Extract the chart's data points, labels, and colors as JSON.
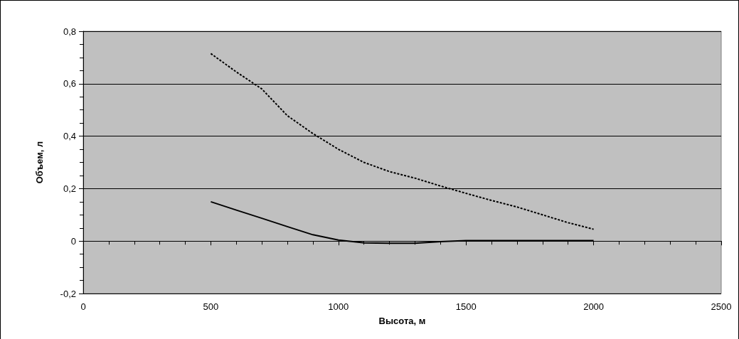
{
  "chart_data": {
    "type": "line",
    "xlabel": "Высота, м",
    "ylabel": "Объем, л",
    "x": [
      500,
      600,
      700,
      800,
      900,
      1000,
      1100,
      1200,
      1300,
      1400,
      1500,
      1600,
      1700,
      1800,
      1900,
      2000
    ],
    "series": [
      {
        "color": "#000000",
        "line_style": "dashed",
        "values": [
          0.715,
          0.645,
          0.58,
          0.478,
          0.41,
          0.35,
          0.3,
          0.265,
          0.24,
          0.21,
          0.182,
          0.155,
          0.13,
          0.1,
          0.07,
          0.045
        ]
      },
      {
        "color": "#000000",
        "line_style": "solid",
        "values": [
          0.15,
          0.118,
          0.087,
          0.055,
          0.024,
          0.004,
          -0.007,
          -0.008,
          -0.008,
          -0.002,
          0.002,
          0.002,
          0.002,
          0.002,
          0.002,
          0.002
        ]
      }
    ],
    "xlim": [
      0,
      2500
    ],
    "xticks": [
      0,
      500,
      1000,
      1500,
      2000,
      2500
    ],
    "ylim": [
      -0.2,
      0.8
    ],
    "yticks": [
      {
        "value": -0.2,
        "label": "-0,2"
      },
      {
        "value": 0,
        "label": "0"
      },
      {
        "value": 0.2,
        "label": "0,2"
      },
      {
        "value": 0.4,
        "label": "0,4"
      },
      {
        "value": 0.6,
        "label": "0,6"
      },
      {
        "value": 0.8,
        "label": "0,8"
      }
    ],
    "grid": "y",
    "marker": "none"
  }
}
